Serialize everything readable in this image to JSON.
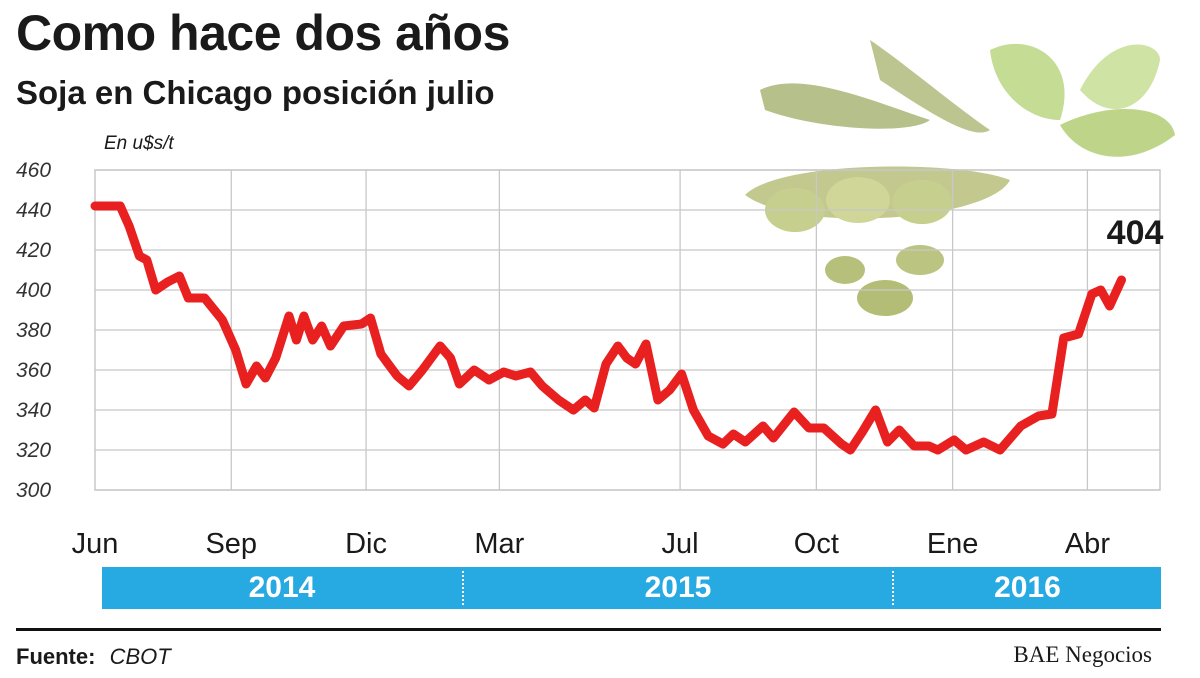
{
  "header": {
    "title": "Como hace dos años",
    "subtitle": "Soja en Chicago posición julio"
  },
  "footer": {
    "source_label": "Fuente:",
    "source_value": "CBOT",
    "credit": "BAE Negocios"
  },
  "colors": {
    "line": "#e8201f",
    "year_bar": "#27a9e1",
    "grid": "#c8c8c8"
  },
  "chart_data": {
    "type": "line",
    "title": "Como hace dos años",
    "subtitle": "Soja en Chicago posición julio",
    "unit_label": "En u$s/t",
    "ylim": [
      300,
      460
    ],
    "y_ticks": [
      460,
      440,
      420,
      400,
      380,
      360,
      340,
      320,
      300
    ],
    "x_tick_labels": [
      "Jun",
      "Sep",
      "Dic",
      "Mar",
      "Jul",
      "Oct",
      "Ene",
      "Abr"
    ],
    "x_tick_dates": [
      "2014-06-01",
      "2014-09-01",
      "2014-12-01",
      "2015-03-01",
      "2015-07-01",
      "2015-10-01",
      "2016-01-01",
      "2016-04-01"
    ],
    "xlim": [
      "2014-06-01",
      "2016-05-20"
    ],
    "years": [
      "2014",
      "2015",
      "2016"
    ],
    "grid": true,
    "annotation": {
      "text": "404",
      "date": "2016-05-18",
      "value": 404
    },
    "series": [
      {
        "points": [
          [
            "2014-06-01",
            442
          ],
          [
            "2014-06-18",
            442
          ],
          [
            "2014-06-24",
            432
          ],
          [
            "2014-07-01",
            417
          ],
          [
            "2014-07-06",
            415
          ],
          [
            "2014-07-12",
            400
          ],
          [
            "2014-07-20",
            404
          ],
          [
            "2014-07-28",
            407
          ],
          [
            "2014-08-03",
            396
          ],
          [
            "2014-08-14",
            396
          ],
          [
            "2014-08-26",
            385
          ],
          [
            "2014-09-04",
            370
          ],
          [
            "2014-09-11",
            353
          ],
          [
            "2014-09-18",
            362
          ],
          [
            "2014-09-24",
            356
          ],
          [
            "2014-10-01",
            366
          ],
          [
            "2014-10-10",
            387
          ],
          [
            "2014-10-15",
            375
          ],
          [
            "2014-10-20",
            387
          ],
          [
            "2014-10-26",
            375
          ],
          [
            "2014-11-01",
            382
          ],
          [
            "2014-11-07",
            372
          ],
          [
            "2014-11-16",
            382
          ],
          [
            "2014-11-28",
            383
          ],
          [
            "2014-12-04",
            386
          ],
          [
            "2014-12-11",
            368
          ],
          [
            "2014-12-22",
            357
          ],
          [
            "2014-12-30",
            352
          ],
          [
            "2015-01-08",
            360
          ],
          [
            "2015-01-20",
            372
          ],
          [
            "2015-01-27",
            366
          ],
          [
            "2015-02-02",
            353
          ],
          [
            "2015-02-12",
            360
          ],
          [
            "2015-02-22",
            355
          ],
          [
            "2015-03-04",
            359
          ],
          [
            "2015-03-12",
            357
          ],
          [
            "2015-03-22",
            359
          ],
          [
            "2015-03-30",
            352
          ],
          [
            "2015-04-10",
            345
          ],
          [
            "2015-04-20",
            340
          ],
          [
            "2015-04-28",
            345
          ],
          [
            "2015-05-04",
            341
          ],
          [
            "2015-05-12",
            363
          ],
          [
            "2015-05-20",
            372
          ],
          [
            "2015-05-26",
            366
          ],
          [
            "2015-06-01",
            363
          ],
          [
            "2015-06-08",
            373
          ],
          [
            "2015-06-16",
            345
          ],
          [
            "2015-06-24",
            350
          ],
          [
            "2015-07-02",
            358
          ],
          [
            "2015-07-10",
            340
          ],
          [
            "2015-07-20",
            327
          ],
          [
            "2015-07-30",
            323
          ],
          [
            "2015-08-06",
            328
          ],
          [
            "2015-08-14",
            324
          ],
          [
            "2015-08-26",
            332
          ],
          [
            "2015-09-02",
            326
          ],
          [
            "2015-09-16",
            339
          ],
          [
            "2015-09-26",
            331
          ],
          [
            "2015-10-06",
            331
          ],
          [
            "2015-10-18",
            323
          ],
          [
            "2015-10-24",
            320
          ],
          [
            "2015-11-01",
            329
          ],
          [
            "2015-11-10",
            340
          ],
          [
            "2015-11-18",
            324
          ],
          [
            "2015-11-26",
            330
          ],
          [
            "2015-12-06",
            322
          ],
          [
            "2015-12-16",
            322
          ],
          [
            "2015-12-22",
            320
          ],
          [
            "2016-01-02",
            325
          ],
          [
            "2016-01-10",
            320
          ],
          [
            "2016-01-22",
            324
          ],
          [
            "2016-02-02",
            320
          ],
          [
            "2016-02-16",
            332
          ],
          [
            "2016-02-28",
            337
          ],
          [
            "2016-03-08",
            338
          ],
          [
            "2016-03-16",
            376
          ],
          [
            "2016-03-26",
            378
          ],
          [
            "2016-04-04",
            398
          ],
          [
            "2016-04-10",
            400
          ],
          [
            "2016-04-16",
            392
          ],
          [
            "2016-04-24",
            405
          ]
        ]
      }
    ]
  }
}
